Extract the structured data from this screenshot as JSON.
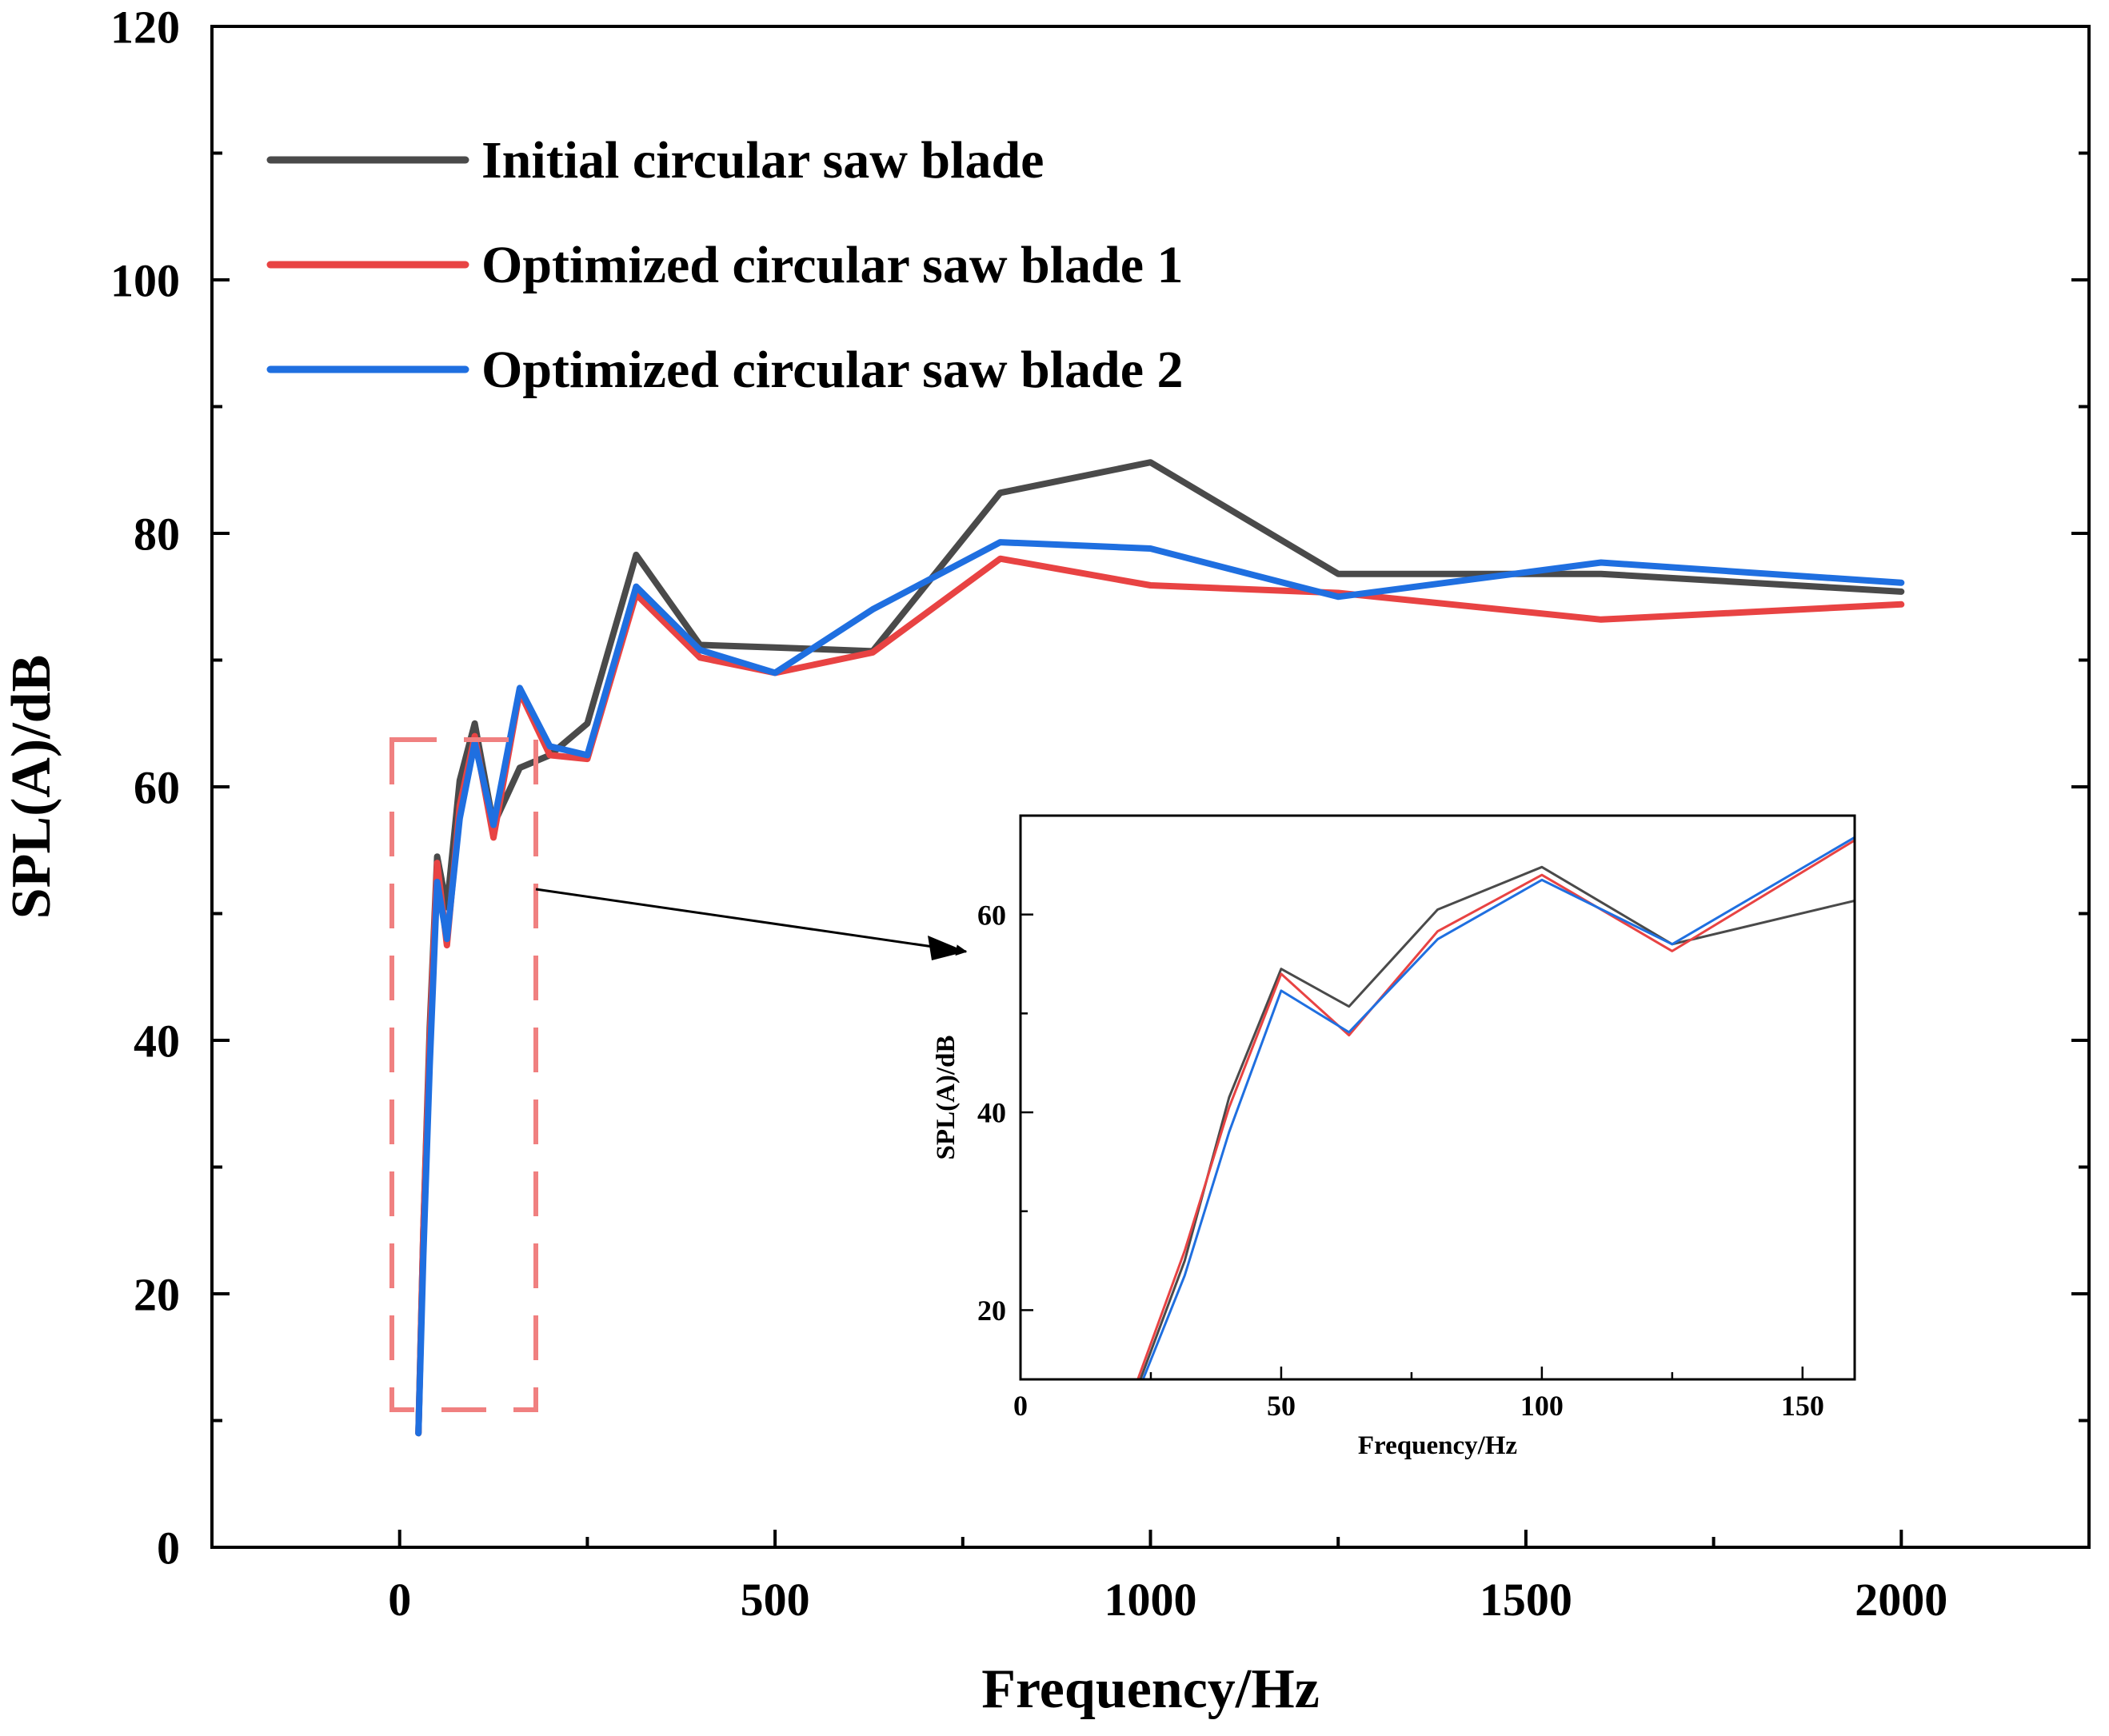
{
  "chart_data": [
    {
      "type": "line",
      "name": "main",
      "xlabel": "Frequency/Hz",
      "ylabel": "SPL(A)/dB",
      "xlim": [
        -250,
        2250
      ],
      "ylim": [
        0,
        120
      ],
      "xticks": [
        0,
        500,
        1000,
        1500,
        2000
      ],
      "xminor": [
        250,
        750,
        1250,
        1750
      ],
      "yticks": [
        0,
        20,
        40,
        60,
        80,
        100,
        120
      ],
      "yminor": [
        10,
        30,
        50,
        70,
        90,
        110
      ],
      "legend_position": "top-left",
      "series": [
        {
          "name": "Initial circular saw blade",
          "color": "#4a4a4a",
          "x": [
            25,
            31.5,
            40,
            50,
            63,
            80,
            100,
            125,
            160,
            200,
            250,
            315,
            400,
            500,
            630,
            800,
            1000,
            1250,
            1600,
            2000
          ],
          "y": [
            9,
            25,
            41,
            54.5,
            50.5,
            60.5,
            65,
            57,
            61.5,
            62.5,
            65,
            78.3,
            71.2,
            71,
            70.7,
            83.2,
            85.6,
            76.8,
            76.8,
            75.4
          ]
        },
        {
          "name": "Optimized circular saw blade 1",
          "color": "#e84343",
          "x": [
            25,
            31.5,
            40,
            50,
            63,
            80,
            100,
            125,
            160,
            200,
            250,
            315,
            400,
            500,
            630,
            800,
            1000,
            1250,
            1600,
            2000
          ],
          "y": [
            9,
            25,
            40,
            54,
            47.5,
            58.5,
            64,
            56,
            67.5,
            62.5,
            62.2,
            75.2,
            70.2,
            69,
            70.6,
            78,
            75.9,
            75.3,
            73.2,
            74.4
          ]
        },
        {
          "name": "Optimized circular saw blade 2",
          "color": "#1f6fe0",
          "x": [
            25,
            31.5,
            40,
            50,
            63,
            80,
            100,
            125,
            160,
            200,
            250,
            315,
            400,
            500,
            630,
            800,
            1000,
            1250,
            1600,
            2000
          ],
          "y": [
            9,
            23,
            38,
            52.5,
            48,
            57.5,
            63.5,
            57,
            67.8,
            63.2,
            62.5,
            75.8,
            70.8,
            69,
            74,
            79.3,
            78.8,
            75,
            77.7,
            76.1
          ]
        }
      ]
    },
    {
      "type": "line",
      "name": "inset",
      "xlabel": "Frequency/Hz",
      "ylabel": "SPL(A)/dB",
      "xlim": [
        0,
        160
      ],
      "ylim": [
        13,
        70
      ],
      "xticks": [
        0,
        50,
        100,
        150
      ],
      "xminor": [
        25,
        75,
        125
      ],
      "yticks": [
        20,
        40,
        60
      ],
      "yminor": [
        30,
        50
      ],
      "series": [
        {
          "name": "Initial circular saw blade",
          "color": "#4a4a4a",
          "x": [
            23,
            31.5,
            40,
            50,
            63,
            80,
            100,
            125,
            160
          ],
          "y": [
            13,
            25,
            41.5,
            54.5,
            50.7,
            60.5,
            64.8,
            57,
            61.4
          ]
        },
        {
          "name": "Optimized circular saw blade 1",
          "color": "#e84343",
          "x": [
            22.5,
            31.5,
            40,
            50,
            63,
            80,
            100,
            125,
            160
          ],
          "y": [
            13,
            26,
            40.5,
            54,
            47.8,
            58.3,
            64,
            56.3,
            67.5
          ]
        },
        {
          "name": "Optimized circular saw blade 2",
          "color": "#1f6fe0",
          "x": [
            23.5,
            31.5,
            40,
            50,
            63,
            80,
            100,
            125,
            160
          ],
          "y": [
            13,
            23.5,
            38,
            52.3,
            48.1,
            57.5,
            63.5,
            57,
            67.8
          ]
        }
      ]
    }
  ],
  "zoom_box_color": "#f08080",
  "arrow_color": "#000000"
}
